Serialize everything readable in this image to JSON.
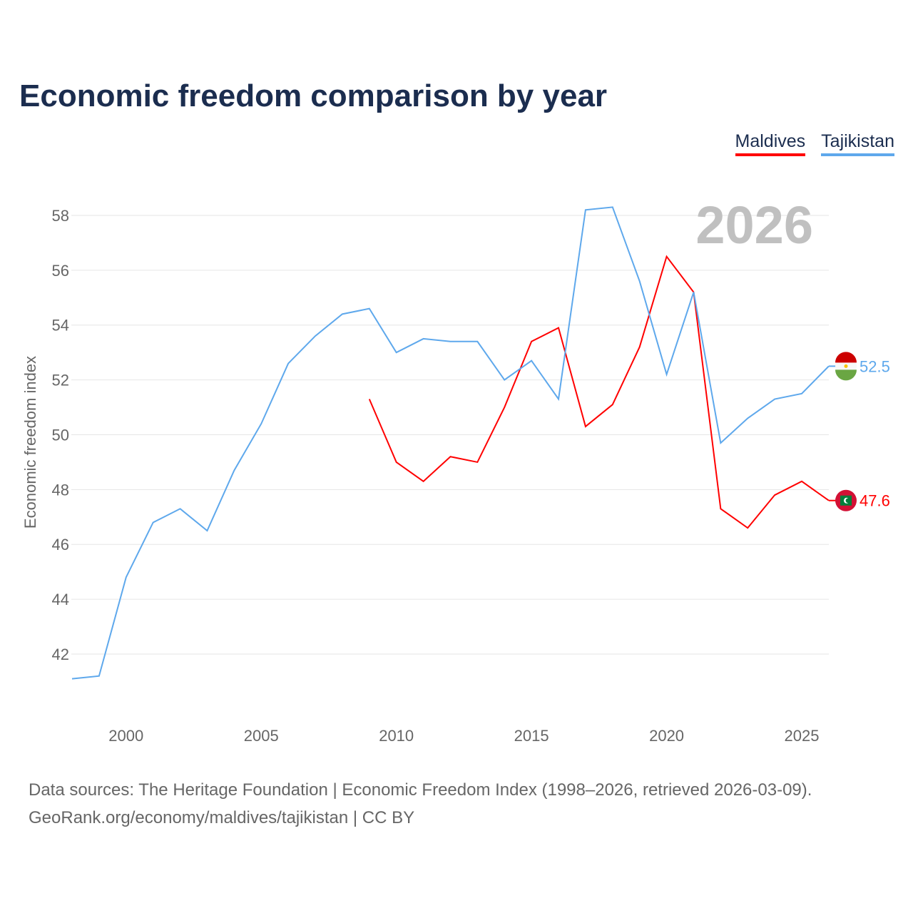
{
  "title": "Economic freedom comparison by year",
  "watermark_year": "2026",
  "source_line1": "Data sources: The Heritage Foundation | Economic Freedom Index (1998–2026, retrieved 2026-03-09).",
  "source_line2": "GeoRank.org/economy/maldives/tajikistan | CC BY",
  "chart_data": {
    "type": "line",
    "title": "Economic freedom comparison by year",
    "xlabel": "",
    "ylabel": "Economic freedom index",
    "xlim": [
      1998,
      2026
    ],
    "ylim": [
      40,
      59.5
    ],
    "xticks": [
      2000,
      2005,
      2010,
      2015,
      2020,
      2025
    ],
    "yticks": [
      42,
      44,
      46,
      48,
      50,
      52,
      54,
      56,
      58
    ],
    "grid": true,
    "legend_position": "top-right",
    "series": [
      {
        "name": "Maldives",
        "color": "#ff0000",
        "end_label": "47.6",
        "x": [
          2009,
          2010,
          2011,
          2012,
          2013,
          2014,
          2015,
          2016,
          2017,
          2018,
          2019,
          2020,
          2021,
          2022,
          2023,
          2024,
          2025,
          2026
        ],
        "values": [
          51.3,
          49.0,
          48.3,
          49.2,
          49.0,
          51.0,
          53.4,
          53.9,
          50.3,
          51.1,
          53.2,
          56.5,
          55.2,
          47.3,
          46.6,
          47.8,
          48.3,
          47.6
        ]
      },
      {
        "name": "Tajikistan",
        "color": "#5ea8ec",
        "end_label": "52.5",
        "x": [
          1998,
          1999,
          2000,
          2001,
          2002,
          2003,
          2004,
          2005,
          2006,
          2007,
          2008,
          2009,
          2010,
          2011,
          2012,
          2013,
          2014,
          2015,
          2016,
          2017,
          2018,
          2019,
          2020,
          2021,
          2022,
          2023,
          2024,
          2025,
          2026
        ],
        "values": [
          41.1,
          41.2,
          44.8,
          46.8,
          47.3,
          46.5,
          48.7,
          50.4,
          52.6,
          53.6,
          54.4,
          54.6,
          53.0,
          53.5,
          53.4,
          53.4,
          52.0,
          52.7,
          51.3,
          58.2,
          58.3,
          55.6,
          52.2,
          55.2,
          49.7,
          50.6,
          51.3,
          51.5,
          52.5
        ]
      }
    ]
  }
}
